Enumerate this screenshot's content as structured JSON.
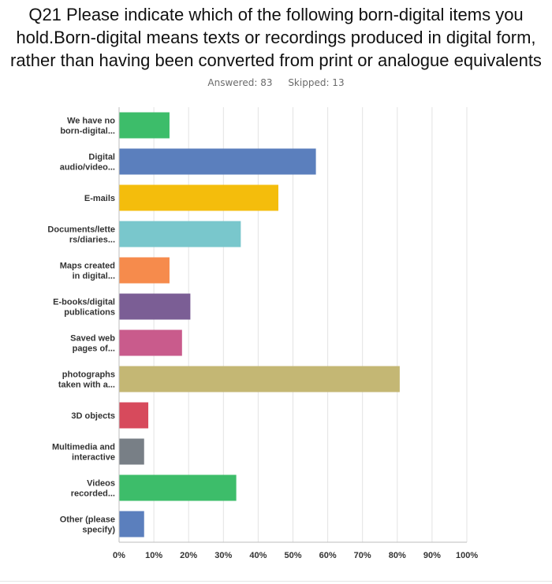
{
  "page": {
    "title_lines": [
      "Q21 Please indicate which of the following born-digital items you",
      "hold.Born-digital means texts or recordings produced in digital form,",
      "rather than having been converted from print or analogue equivalents"
    ],
    "answered": "Answered: 83",
    "skipped": "Skipped: 13"
  },
  "chart_data": {
    "type": "bar",
    "orientation": "horizontal",
    "title": "Q21 Please indicate which of the following born-digital items you hold.Born-digital means texts or recordings produced in digital form, rather than having been converted from print or analogue equivalents",
    "categories": [
      [
        "We have no",
        "born-digital..."
      ],
      [
        "Digital",
        "audio/video..."
      ],
      [
        "E-mails"
      ],
      [
        "Documents/lette",
        "rs/diaries..."
      ],
      [
        "Maps created",
        "in digital..."
      ],
      [
        "E-books/digital",
        "publications"
      ],
      [
        "Saved web",
        "pages of..."
      ],
      [
        "photographs",
        "taken with a..."
      ],
      [
        "3D objects"
      ],
      [
        "Multimedia and",
        "interactive"
      ],
      [
        "Videos",
        "recorded..."
      ],
      [
        "Other (please",
        "specify)"
      ]
    ],
    "values": [
      14.5,
      56.6,
      45.8,
      35.0,
      14.5,
      20.5,
      18.1,
      80.7,
      8.4,
      7.2,
      33.7,
      7.2
    ],
    "colors": [
      "#3dbd6a",
      "#5b7fbd",
      "#f4bd0c",
      "#79c7cc",
      "#f68b4c",
      "#7b5e95",
      "#c95b8c",
      "#c4b774",
      "#d74a5c",
      "#787f86",
      "#3dbd6a",
      "#5b7fbd"
    ],
    "xlim": [
      0,
      100
    ],
    "xticks": [
      0,
      10,
      20,
      30,
      40,
      50,
      60,
      70,
      80,
      90,
      100
    ],
    "xtick_labels": [
      "0%",
      "10%",
      "20%",
      "30%",
      "40%",
      "50%",
      "60%",
      "70%",
      "80%",
      "90%",
      "100%"
    ],
    "grid": true,
    "legend": "none"
  }
}
